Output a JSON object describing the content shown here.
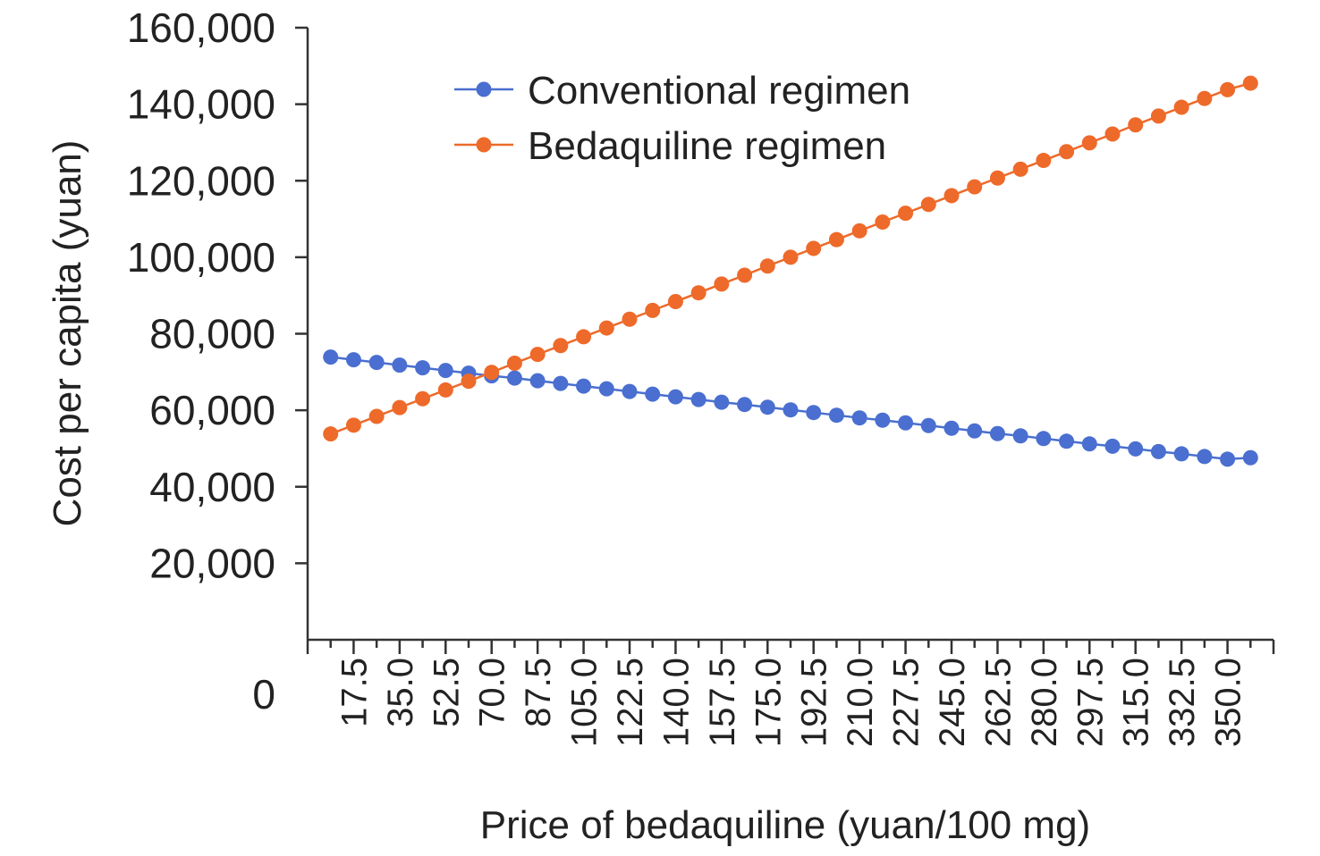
{
  "chart_data": {
    "type": "line",
    "title": "",
    "xlabel": "Price of bedaquiline (yuan/100 mg)",
    "ylabel": "Cost per capita (yuan)",
    "ylim": [
      0,
      160000
    ],
    "y_ticks": [
      "0",
      "20,000",
      "40,000",
      "60,000",
      "80,000",
      "100,000",
      "120,000",
      "140,000",
      "160,000"
    ],
    "x_tick_labels": [
      "17.5",
      "35.0",
      "52.5",
      "70.0",
      "87.5",
      "105.0",
      "122.5",
      "140.0",
      "157.5",
      "175.0",
      "192.5",
      "210.0",
      "227.5",
      "245.0",
      "262.5",
      "280.0",
      "297.5",
      "315.0",
      "332.5",
      "350.0"
    ],
    "x": [
      8.75,
      17.5,
      26.25,
      35.0,
      43.75,
      52.5,
      61.25,
      70.0,
      78.75,
      87.5,
      96.25,
      105.0,
      113.75,
      122.5,
      131.25,
      140.0,
      148.75,
      157.5,
      166.25,
      175.0,
      183.75,
      192.5,
      201.25,
      210.0,
      218.75,
      227.5,
      236.25,
      245.0,
      253.75,
      262.5,
      271.25,
      280.0,
      288.75,
      297.5,
      306.25,
      315.0,
      323.75,
      332.5,
      341.25,
      350.0,
      358.75
    ],
    "legend_position": "top-left",
    "grid": false,
    "series": [
      {
        "name": "Conventional regimen",
        "color": "#4a6fd0",
        "values": [
          73900,
          73200,
          72500,
          71800,
          71100,
          70400,
          69700,
          69000,
          68400,
          67700,
          67000,
          66300,
          65600,
          64900,
          64200,
          63500,
          62800,
          62100,
          61500,
          60800,
          60100,
          59400,
          58700,
          58000,
          57400,
          56700,
          56000,
          55300,
          54600,
          53900,
          53300,
          52600,
          51900,
          51200,
          50600,
          49900,
          49200,
          48600,
          47900,
          47200,
          47600
        ]
      },
      {
        "name": "Bedaquiline regimen",
        "color": "#ee6a2a",
        "values": [
          53800,
          56100,
          58400,
          60700,
          63000,
          65300,
          67600,
          69900,
          72300,
          74600,
          76900,
          79200,
          81500,
          83800,
          86100,
          88400,
          90700,
          93000,
          95300,
          97700,
          100000,
          102300,
          104600,
          106900,
          109200,
          111500,
          113800,
          116100,
          118400,
          120700,
          123000,
          125300,
          127600,
          129900,
          132200,
          134600,
          136900,
          139200,
          141500,
          143800,
          145500
        ]
      }
    ]
  }
}
